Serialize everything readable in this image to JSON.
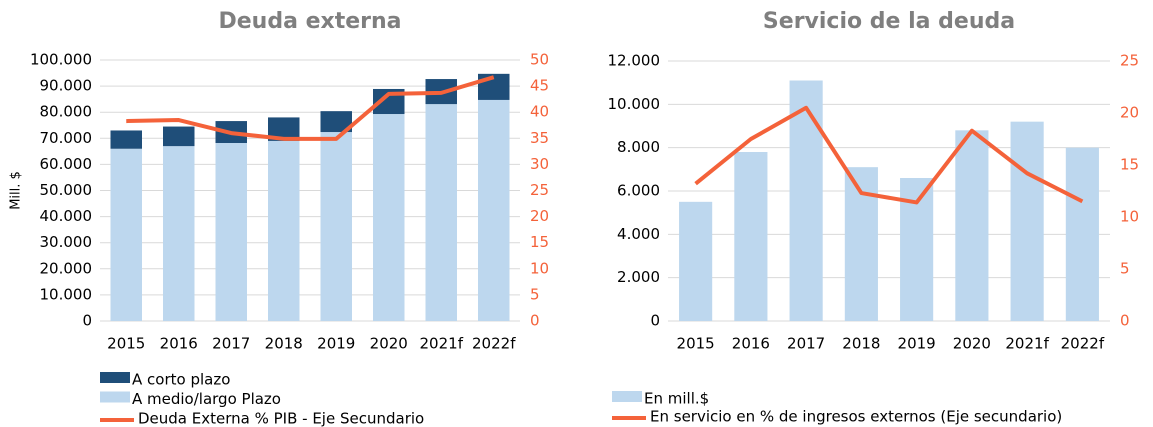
{
  "chart_data": [
    {
      "type": "bar",
      "title": "Deuda externa",
      "y_label": "Mill. $",
      "stacked": true,
      "categories": [
        "2015",
        "2016",
        "2017",
        "2018",
        "2019",
        "2020",
        "2021f",
        "2022f"
      ],
      "series": [
        {
          "name": "A corto plazo",
          "color": "#1f4e79",
          "values": [
            7000,
            7500,
            8400,
            9000,
            8000,
            9600,
            9600,
            10000
          ]
        },
        {
          "name": "A medio/largo Plazo",
          "color": "#bdd7ee",
          "values": [
            66000,
            67000,
            68200,
            69000,
            72400,
            79300,
            83100,
            84700
          ]
        },
        {
          "name": "Deuda Externa  % PIB - Eje Secundario",
          "color": "#f4623a",
          "type": "line",
          "axis": "y2",
          "values": [
            38.3,
            38.5,
            36,
            34.9,
            34.9,
            43.5,
            43.7,
            46.7
          ]
        }
      ],
      "ylim": [
        0,
        100000
      ],
      "yticks": [
        {
          "value": 0,
          "label": "0"
        },
        {
          "value": 10000,
          "label": "10.000"
        },
        {
          "value": 20000,
          "label": "20.000"
        },
        {
          "value": 30000,
          "label": "30.000"
        },
        {
          "value": 40000,
          "label": "40.000"
        },
        {
          "value": 50000,
          "label": "50.000"
        },
        {
          "value": 60000,
          "label": "60.000"
        },
        {
          "value": 70000,
          "label": "70.000"
        },
        {
          "value": 80000,
          "label": "80.000"
        },
        {
          "value": 90000,
          "label": "90.000"
        },
        {
          "value": 100000,
          "label": "100.000"
        }
      ],
      "y2lim": [
        0,
        50
      ],
      "y2ticks": [
        0,
        5,
        10,
        15,
        20,
        25,
        30,
        35,
        40,
        45,
        50
      ],
      "grid": true
    },
    {
      "type": "bar",
      "title": "Servicio de la deuda",
      "stacked": false,
      "categories": [
        "2015",
        "2016",
        "2017",
        "2018",
        "2019",
        "2020",
        "2021f",
        "2022f"
      ],
      "series": [
        {
          "name": "En mill.$",
          "color": "#bdd7ee",
          "values": [
            5500,
            7800,
            11100,
            7100,
            6600,
            8800,
            9200,
            8000
          ]
        },
        {
          "name": "En servicio en % de ingresos externos (Eje secundario)",
          "color": "#f4623a",
          "type": "line",
          "axis": "y2",
          "values": [
            13.2,
            17.5,
            20.5,
            12.3,
            11.4,
            18.3,
            14.2,
            11.5
          ]
        }
      ],
      "ylim": [
        0,
        12000
      ],
      "yticks": [
        {
          "value": 0,
          "label": "0"
        },
        {
          "value": 2000,
          "label": "2.000"
        },
        {
          "value": 4000,
          "label": "4.000"
        },
        {
          "value": 6000,
          "label": "6.000"
        },
        {
          "value": 8000,
          "label": "8.000"
        },
        {
          "value": 10000,
          "label": "10.000"
        },
        {
          "value": 12000,
          "label": "12.000"
        }
      ],
      "y2lim": [
        0,
        25
      ],
      "y2ticks": [
        0,
        5,
        10,
        15,
        20,
        25
      ],
      "grid": true
    }
  ]
}
